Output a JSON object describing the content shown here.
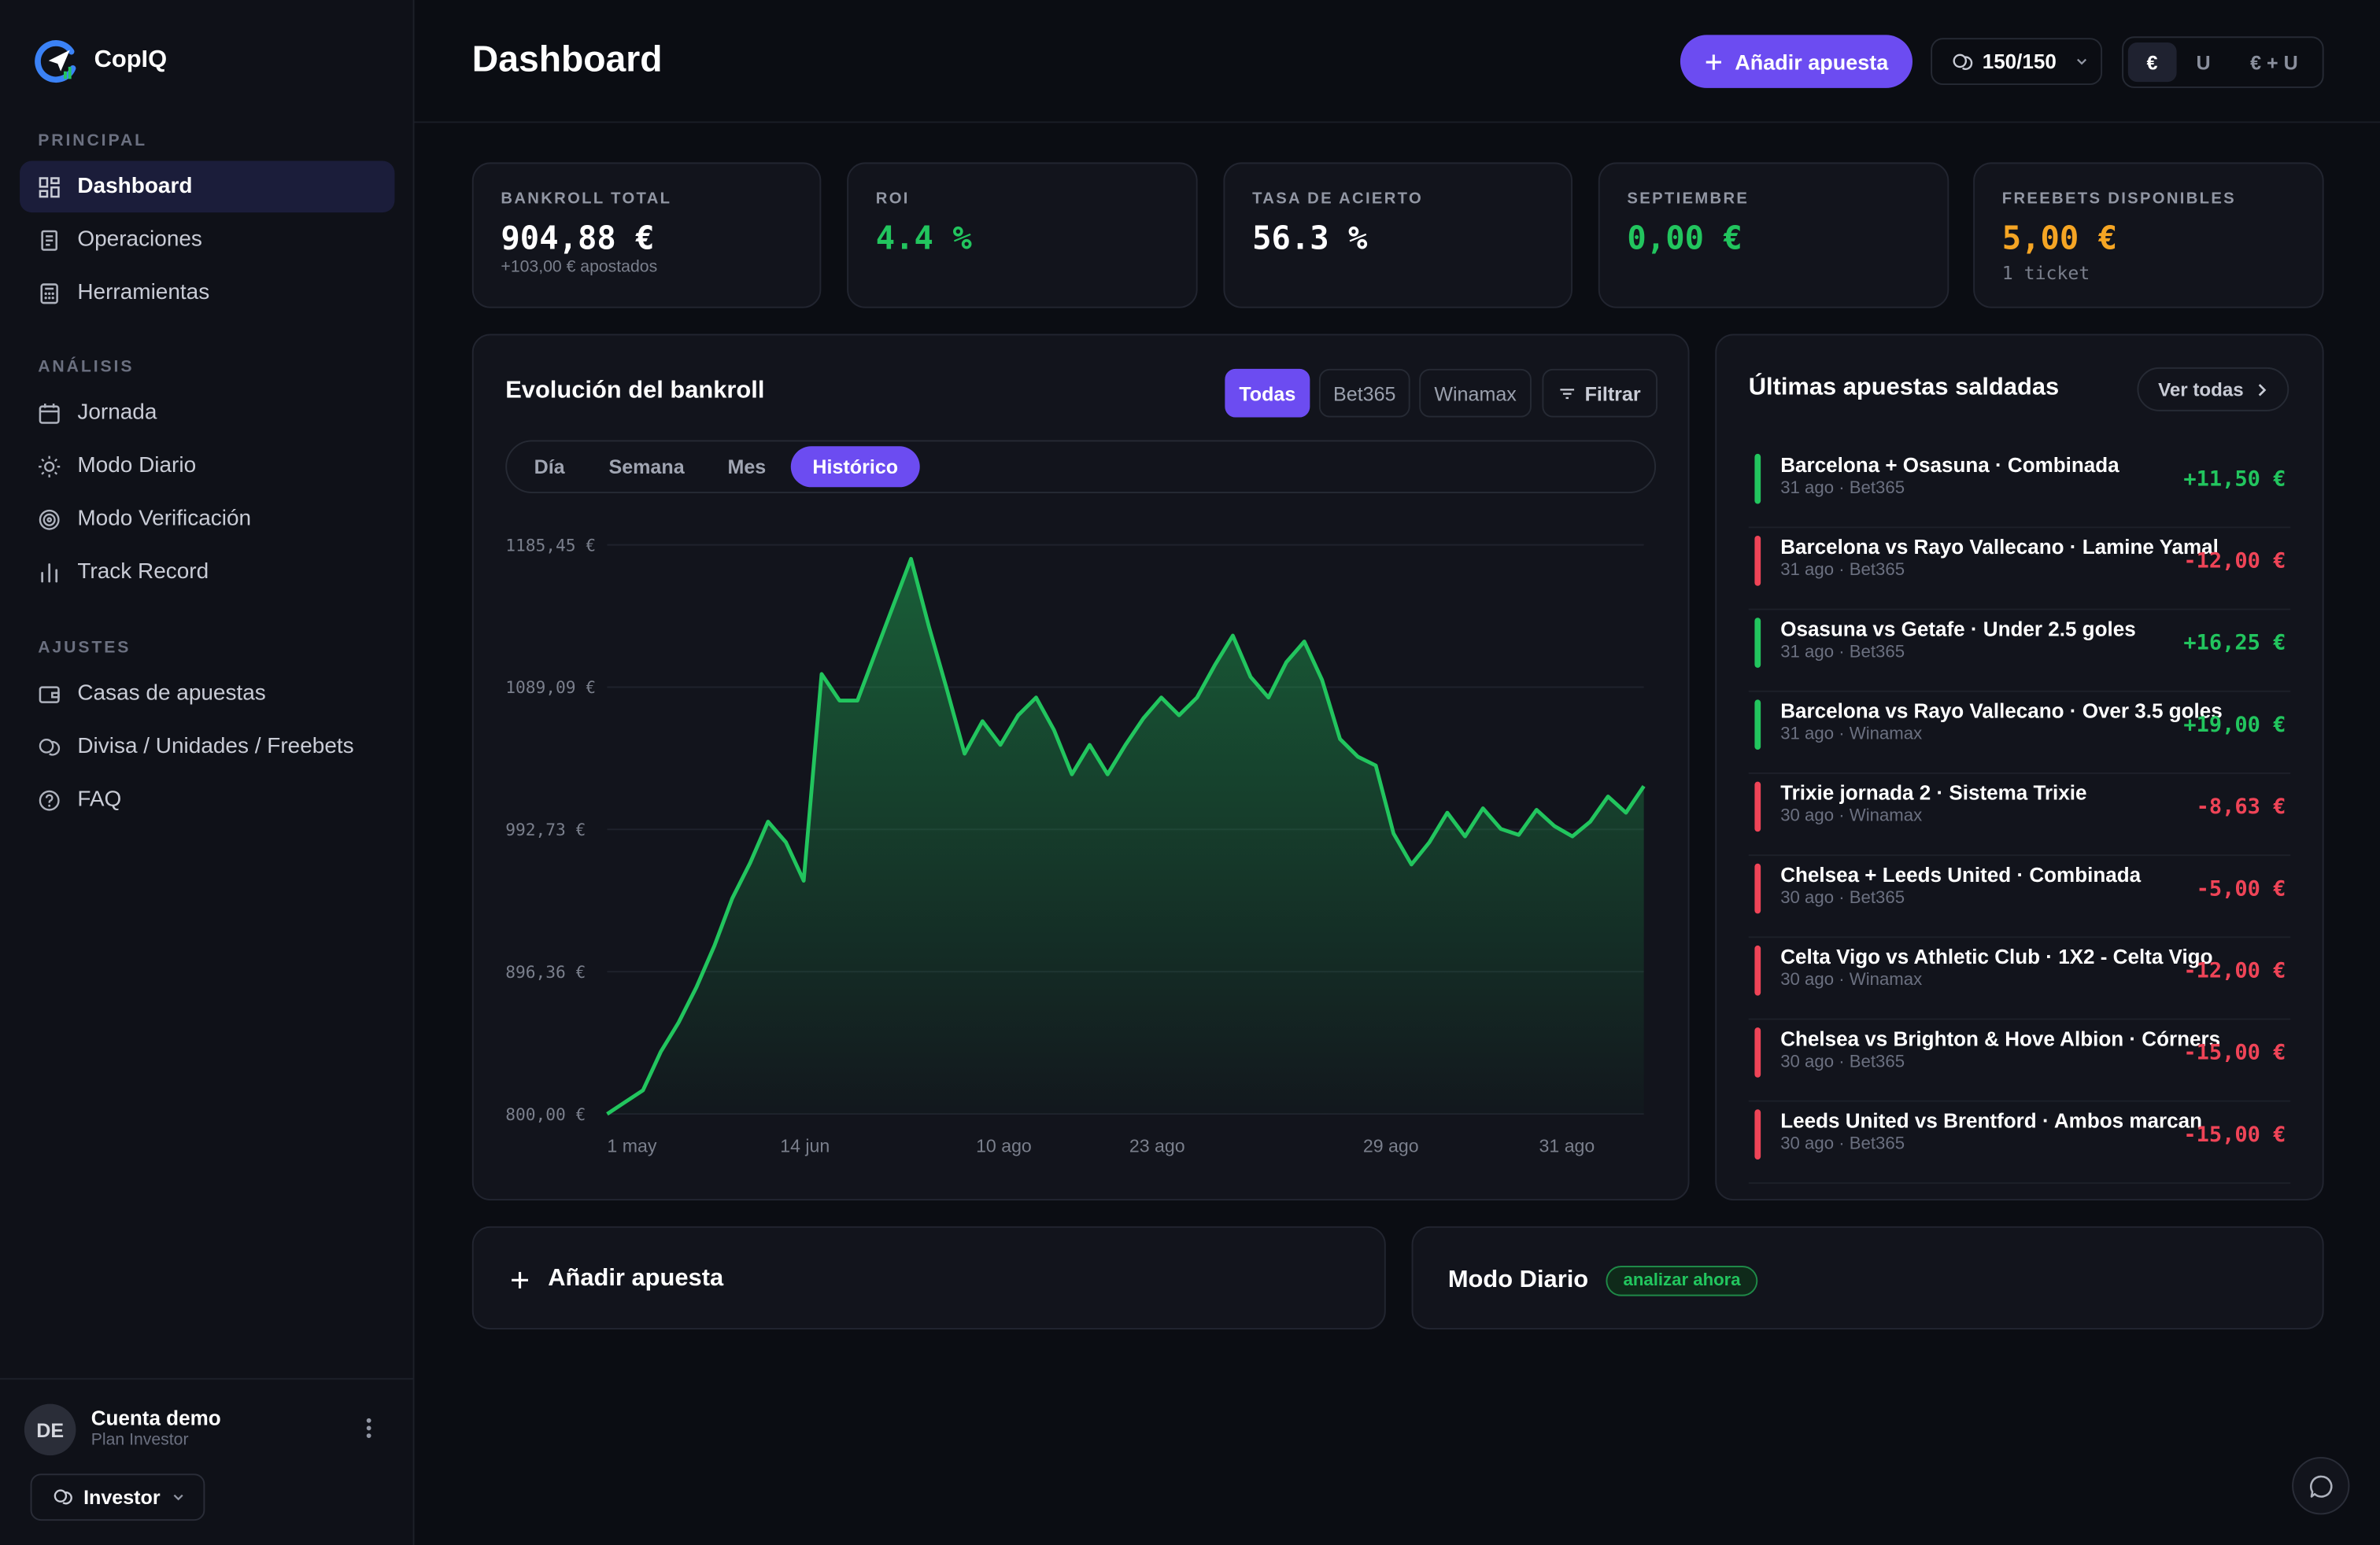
{
  "app": {
    "name": "CopIQ"
  },
  "sidebar": {
    "sections": [
      {
        "title": "PRINCIPAL",
        "items": [
          {
            "label": "Dashboard",
            "icon": "dashboard-icon",
            "active": true
          },
          {
            "label": "Operaciones",
            "icon": "receipt-icon"
          },
          {
            "label": "Herramientas",
            "icon": "calculator-icon"
          }
        ]
      },
      {
        "title": "ANÁLISIS",
        "items": [
          {
            "label": "Jornada",
            "icon": "calendar-icon"
          },
          {
            "label": "Modo Diario",
            "icon": "sun-icon"
          },
          {
            "label": "Modo Verificación",
            "icon": "target-icon"
          },
          {
            "label": "Track Record",
            "icon": "bar-chart-icon"
          }
        ]
      },
      {
        "title": "AJUSTES",
        "items": [
          {
            "label": "Casas de apuestas",
            "icon": "wallet-icon"
          },
          {
            "label": "Divisa / Unidades / Freebets",
            "icon": "coins-icon"
          },
          {
            "label": "FAQ",
            "icon": "help-circle-icon"
          }
        ]
      }
    ],
    "account": {
      "initials": "DE",
      "name": "Cuenta demo",
      "plan": "Plan Investor",
      "plan_button": "Investor"
    }
  },
  "header": {
    "title": "Dashboard",
    "add_button": "Añadir apuesta",
    "units": "150/150",
    "currency_modes": [
      "€",
      "U",
      "€ + U"
    ],
    "currency_selected": "€"
  },
  "stats": [
    {
      "label": "BANKROLL TOTAL",
      "value": "904,88 €",
      "sub": "+103,00 € apostados",
      "color": "#ffffff"
    },
    {
      "label": "ROI",
      "value": "4.4 %",
      "sub": "",
      "color": "#22c55e"
    },
    {
      "label": "TASA DE ACIERTO",
      "value": "56.3 %",
      "sub": "",
      "color": "#ffffff"
    },
    {
      "label": "SEPTIEMBRE",
      "value": "0,00 €",
      "sub": "",
      "color": "#22c55e"
    },
    {
      "label": "FREEBETS DISPONIBLES",
      "value": "5,00 €",
      "sub": "1 ticket",
      "color": "#f5a524"
    }
  ],
  "bankroll_chart": {
    "title": "Evolución del bankroll",
    "bookmaker_filters": [
      "Todas",
      "Bet365",
      "Winamax"
    ],
    "bookmaker_selected": "Todas",
    "filter_button": "Filtrar",
    "ranges": [
      "Día",
      "Semana",
      "Mes",
      "Histórico"
    ],
    "range_selected": "Histórico"
  },
  "chart_data": {
    "type": "area",
    "title": "Evolución del bankroll",
    "y_tick_labels": [
      "1185,45 €",
      "1089,09 €",
      "992,73 €",
      "896,36 €",
      "800,00 €"
    ],
    "x_tick_labels": [
      "1 may",
      "14 jun",
      "10 ago",
      "23 ago",
      "29 ago",
      "31 ago"
    ],
    "ylim": [
      800.0,
      1185.45
    ],
    "grid": true,
    "color": "#22c55e",
    "values": [
      800,
      808,
      816,
      842,
      862,
      886,
      914,
      946,
      970,
      998,
      984,
      958,
      1098,
      1080,
      1080,
      1112,
      1144,
      1176,
      1130,
      1088,
      1044,
      1066,
      1050,
      1070,
      1082,
      1060,
      1030,
      1050,
      1030,
      1050,
      1068,
      1082,
      1070,
      1082,
      1104,
      1124,
      1096,
      1082,
      1106,
      1120,
      1094,
      1054,
      1042,
      1036,
      990,
      969,
      984,
      1004,
      988,
      1007,
      993,
      989,
      1006,
      995,
      988,
      998,
      1015,
      1004,
      1022
    ]
  },
  "last_bets": {
    "title": "Últimas apuestas saldadas",
    "see_all": "Ver todas",
    "items": [
      {
        "name": "Barcelona + Osasuna · Combinada",
        "meta": "31 ago · Bet365",
        "amount": "+11,50 €",
        "result": "won"
      },
      {
        "name": "Barcelona vs Rayo Vallecano · Lamine Yamal",
        "meta": "31 ago · Bet365",
        "amount": "-12,00 €",
        "result": "lost"
      },
      {
        "name": "Osasuna vs Getafe · Under 2.5 goles",
        "meta": "31 ago · Bet365",
        "amount": "+16,25 €",
        "result": "won"
      },
      {
        "name": "Barcelona vs Rayo Vallecano · Over 3.5 goles",
        "meta": "31 ago · Winamax",
        "amount": "+19,00 €",
        "result": "won"
      },
      {
        "name": "Trixie jornada 2 · Sistema Trixie",
        "meta": "30 ago · Winamax",
        "amount": "-8,63 €",
        "result": "lost"
      },
      {
        "name": "Chelsea + Leeds United · Combinada",
        "meta": "30 ago · Bet365",
        "amount": "-5,00 €",
        "result": "lost"
      },
      {
        "name": "Celta Vigo vs Athletic Club · 1X2 - Celta Vigo",
        "meta": "30 ago · Winamax",
        "amount": "-12,00 €",
        "result": "lost"
      },
      {
        "name": "Chelsea vs Brighton & Hove Albion · Córners",
        "meta": "30 ago · Bet365",
        "amount": "-15,00 €",
        "result": "lost"
      },
      {
        "name": "Leeds United vs Brentford · Ambos marcan",
        "meta": "30 ago · Bet365",
        "amount": "-15,00 €",
        "result": "lost"
      }
    ]
  },
  "bottom": {
    "add_bet": "Añadir apuesta",
    "daily_mode": "Modo Diario",
    "daily_badge": "analizar ahora"
  },
  "colors": {
    "accent": "#6c4cf1",
    "positive": "#22c55e",
    "negative": "#ef4457",
    "freebet": "#f5a524"
  }
}
